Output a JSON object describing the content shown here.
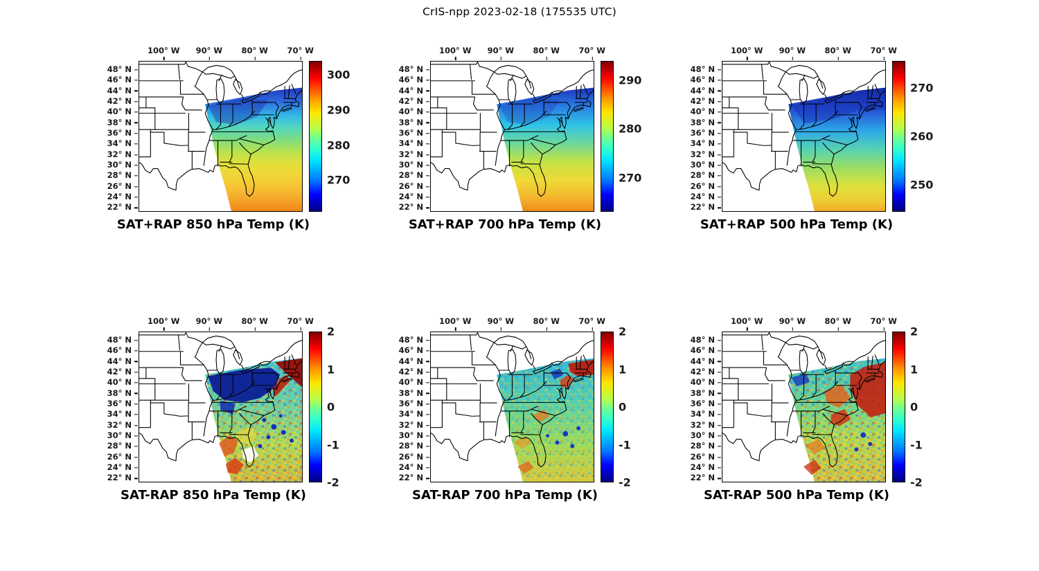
{
  "figure": {
    "title": "CrIS-npp 2023-02-18 (175535 UTC)"
  },
  "chart_data": {
    "type": "heatmap",
    "layout": "2 rows x 3 columns of geographic map panels, each with its own vertical colorbar on the right",
    "suptitle": "CrIS-npp 2023-02-18 (175535 UTC)",
    "satellite": "CrIS-npp",
    "date": "2023-02-18",
    "time_utc": "175535 UTC",
    "x_ticks": [
      "100° W",
      "90° W",
      "80° W",
      "70° W"
    ],
    "y_ticks": [
      "48° N",
      "46° N",
      "44° N",
      "42° N",
      "40° N",
      "38° N",
      "36° N",
      "34° N",
      "32° N",
      "30° N",
      "28° N",
      "26° N",
      "24° N",
      "22° N"
    ],
    "x_range": "approx 105.5° W to 69.5° W",
    "y_range": "approx 22° N to 49.5° N",
    "basemap": "United States coastline, Great Lakes and state boundaries in black on white",
    "colormap": "jet",
    "grid": false,
    "panels": [
      {
        "position": "row 1, col 1",
        "title": "SAT+RAP 850 hPa Temp (K)",
        "units": "K",
        "colorbar": {
          "vmin": 261,
          "vmax": 304,
          "ticks": [
            300,
            290,
            280,
            270
          ]
        },
        "swath_description": "Diagonal CrIS swath from the mid-Mississippi valley across the Southeast US and western Atlantic; 850 hPa temperature increases from about 266 K (dark blue) in the northeast to about 297 K (orange) at the southern edge",
        "sample_values_K": {
          "lat_42N": 268,
          "lat_38N": 274,
          "lat_34N": 281,
          "lat_30N": 288,
          "lat_26N": 293,
          "lat_22N": 297
        }
      },
      {
        "position": "row 1, col 2",
        "title": "SAT+RAP 700 hPa Temp (K)",
        "units": "K",
        "colorbar": {
          "vmin": 263,
          "vmax": 294,
          "ticks": [
            290,
            280,
            270
          ]
        },
        "swath_description": "Same swath; 700 hPa temperature ranges from about 266 K (blue) in the northeast to about 290 K (orange) along the southern edge",
        "sample_values_K": {
          "lat_42N": 266,
          "lat_38N": 271,
          "lat_34N": 277,
          "lat_30N": 283,
          "lat_26N": 287,
          "lat_22N": 290
        }
      },
      {
        "position": "row 1, col 3",
        "title": "SAT+RAP 500 hPa Temp (K)",
        "units": "K",
        "colorbar": {
          "vmin": 244.5,
          "vmax": 275.5,
          "ticks": [
            270,
            260,
            250
          ]
        },
        "swath_description": "Same swath; 500 hPa temperature ranges from about 248 K (dark blue) in the northeast to about 272 K (yellow-orange) at the southern edge",
        "sample_values_K": {
          "lat_42N": 249,
          "lat_38N": 254,
          "lat_34N": 260,
          "lat_30N": 265,
          "lat_26N": 269,
          "lat_22N": 272
        }
      },
      {
        "position": "row 2, col 1",
        "title": "SAT-RAP 850 hPa Temp (K)",
        "units": "K",
        "colorbar": {
          "vmin": -2,
          "vmax": 2,
          "ticks": [
            2,
            1,
            0,
            -1,
            -2
          ]
        },
        "swath_description": "Noisy satellite-minus-RAP 850 hPa differences within the swath: large -2 K (dark blue) region over the Ohio Valley and Appalachians, +2 K (dark red) band along the Northeast coast, orange/red speckles over Florida and the Gulf, scattered dark-blue spots over the Atlantic"
      },
      {
        "position": "row 2, col 2",
        "title": "SAT-RAP 700 hPa Temp (K)",
        "units": "K",
        "colorbar": {
          "vmin": -2,
          "vmax": 2,
          "ticks": [
            2,
            1,
            0,
            -1,
            -2
          ]
        },
        "swath_description": "Mostly ±1 K cyan/green/yellow speckle at 700 hPa with a +2 K (red) streak along the Northeast coast and scattered -2 K (dark blue) spots over the western Atlantic"
      },
      {
        "position": "row 2, col 3",
        "title": "SAT-RAP 500 hPa Temp (K)",
        "units": "K",
        "colorbar": {
          "vmin": -2,
          "vmax": 2,
          "ticks": [
            2,
            1,
            0,
            -1,
            -2
          ]
        },
        "swath_description": "500 hPa differences: strong +2 K (red) anomalies along the East Coast and over Virginia/Carolinas, orange patches over the Tennessee valley, mixed ±1 K cyan/green elsewhere with a few -2 K spots offshore"
      }
    ]
  }
}
